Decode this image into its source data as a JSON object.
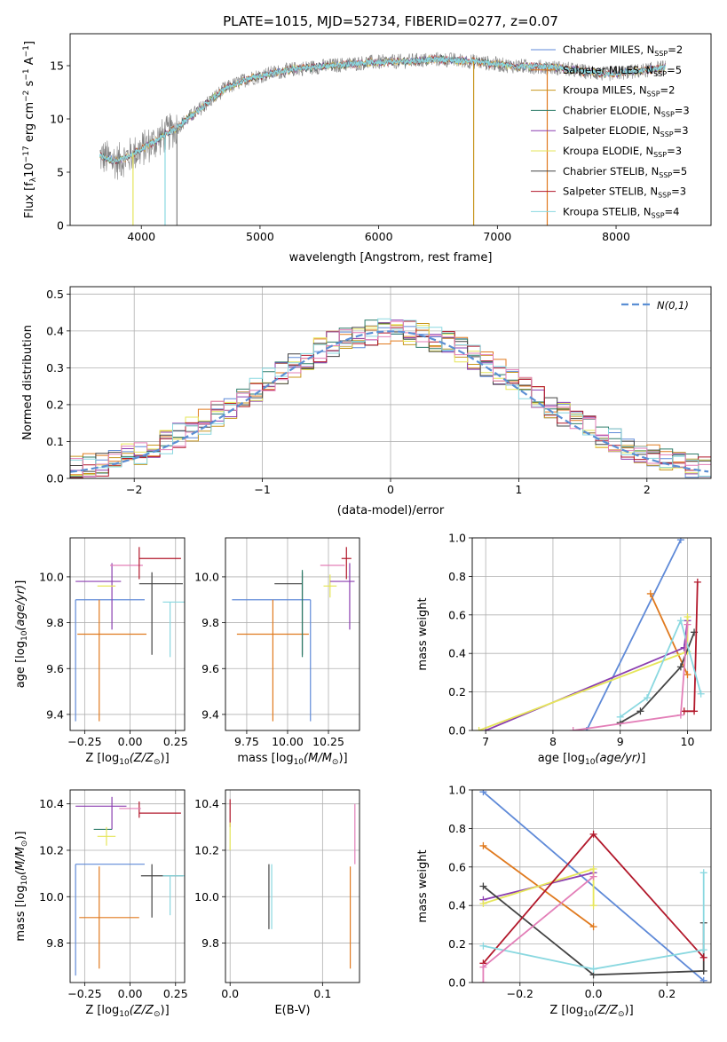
{
  "page": {
    "title": "PLATE=1015, MJD=52734, FIBERID=0277, z=0.07"
  },
  "chart_data": [
    {
      "id": "spectrum",
      "type": "line",
      "xlabel": "wavelength [Angstrom, rest frame]",
      "ylabel": "Flux [f",
      "xlim": [
        3400,
        8800
      ],
      "ylim": [
        0,
        18
      ],
      "xticks": [
        "4000",
        "5000",
        "6000",
        "7000",
        "8000"
      ],
      "yticks": [
        "0",
        "5",
        "10",
        "15"
      ],
      "legend": {
        "placement": "right",
        "entries": [
          {
            "model": "Chabrier MILES",
            "nssp": "2",
            "color": "#5f8ad8"
          },
          {
            "model": "Salpeter MILES",
            "nssp": "5",
            "color": "#e07a1f"
          },
          {
            "model": "Kroupa MILES",
            "nssp": "2",
            "color": "#c8961e"
          },
          {
            "model": "Chabrier ELODIE",
            "nssp": "3",
            "color": "#2f7d6a"
          },
          {
            "model": "Salpeter ELODIE",
            "nssp": "3",
            "color": "#8b3fb0"
          },
          {
            "model": "Kroupa ELODIE",
            "nssp": "3",
            "color": "#e6e65a"
          },
          {
            "model": "Chabrier STELIB",
            "nssp": "5",
            "color": "#444444"
          },
          {
            "model": "Salpeter STELIB",
            "nssp": "3",
            "color": "#b2182b"
          },
          {
            "model": "Kroupa STELIB",
            "nssp": "4",
            "color": "#8ad8e0"
          }
        ]
      },
      "series": {
        "observed_color": "#808080",
        "model_color": "#8ad8e0",
        "continuum": [
          [
            3650,
            6.5
          ],
          [
            3800,
            6.0
          ],
          [
            3950,
            6.8
          ],
          [
            4100,
            7.8
          ],
          [
            4300,
            9.2
          ],
          [
            4500,
            11.0
          ],
          [
            4700,
            12.8
          ],
          [
            4900,
            13.8
          ],
          [
            5100,
            14.3
          ],
          [
            5300,
            14.7
          ],
          [
            5600,
            15.0
          ],
          [
            5900,
            15.3
          ],
          [
            6200,
            15.4
          ],
          [
            6500,
            15.6
          ],
          [
            6800,
            15.4
          ],
          [
            7100,
            15.0
          ],
          [
            7500,
            14.8
          ],
          [
            7900,
            14.2
          ],
          [
            8200,
            14.5
          ],
          [
            8400,
            14.8
          ]
        ]
      }
    },
    {
      "id": "residuals",
      "type": "histogram",
      "xlabel": "(data-model)/error",
      "ylabel": "Normed distribution",
      "xlim": [
        -2.5,
        2.5
      ],
      "ylim": [
        0,
        0.52
      ],
      "xticks": [
        "−2",
        "−1",
        "0",
        "1",
        "2"
      ],
      "yticks": [
        "0.0",
        "0.1",
        "0.2",
        "0.3",
        "0.4",
        "0.5"
      ],
      "legend": {
        "placement": "top-right",
        "label": "N(0,1)"
      },
      "gaussian_color": "#5b8fd4",
      "bin_width": 0.1,
      "series_colors": [
        "#5f8ad8",
        "#e07a1f",
        "#c8961e",
        "#2f7d6a",
        "#8b3fb0",
        "#e6e65a",
        "#444444",
        "#b2182b",
        "#8ad8e0",
        "#e37fb8"
      ]
    },
    {
      "id": "age_vs_Z",
      "type": "errorbar",
      "xlabel": "Z [log",
      "ylabel": "age  [log",
      "xlim": [
        -0.33,
        0.3
      ],
      "ylim": [
        9.33,
        10.17
      ],
      "xticks": [
        "−0.25",
        "0.00",
        "0.25"
      ],
      "yticks": [
        "9.4",
        "9.6",
        "9.8",
        "10.0"
      ],
      "points": [
        {
          "x": -0.3,
          "xerr": [
            0.0,
            0.38
          ],
          "y": 9.9,
          "yerr": [
            0.53,
            0.0
          ],
          "color": "#5f8ad8"
        },
        {
          "x": -0.29,
          "xerr": [
            0.0,
            0.38
          ],
          "y": 9.75,
          "yerr": [
            0.0,
            0.0
          ],
          "color": "#e07a1f"
        },
        {
          "x": -0.17,
          "xerr": [
            0.0,
            0.0
          ],
          "y": 9.75,
          "yerr": [
            0.38,
            0.15
          ],
          "color": "#e07a1f"
        },
        {
          "x": -0.1,
          "xerr": [
            0.2,
            0.05
          ],
          "y": 9.98,
          "yerr": [
            0.21,
            0.08
          ],
          "color": "#8b3fb0"
        },
        {
          "x": -0.13,
          "xerr": [
            0.05,
            0.05
          ],
          "y": 9.96,
          "yerr": [
            0.0,
            0.0
          ],
          "color": "#e6e65a"
        },
        {
          "x": -0.06,
          "xerr": [
            0.05,
            0.13
          ],
          "y": 10.05,
          "yerr": [
            0.0,
            0.0
          ],
          "color": "#e37fb8"
        },
        {
          "x": 0.05,
          "xerr": [
            0.0,
            0.23
          ],
          "y": 10.08,
          "yerr": [
            0.09,
            0.05
          ],
          "color": "#b2182b"
        },
        {
          "x": 0.12,
          "xerr": [
            0.07,
            0.17
          ],
          "y": 9.97,
          "yerr": [
            0.31,
            0.05
          ],
          "color": "#444444"
        },
        {
          "x": 0.22,
          "xerr": [
            0.04,
            0.08
          ],
          "y": 9.89,
          "yerr": [
            0.24,
            0.0
          ],
          "color": "#8ad8e0"
        }
      ]
    },
    {
      "id": "age_vs_mass",
      "type": "errorbar",
      "xlabel": "mass [log",
      "ylabel": "",
      "xlim": [
        9.62,
        10.44
      ],
      "ylim": [
        9.33,
        10.17
      ],
      "xticks": [
        "9.75",
        "10.00",
        "10.25"
      ],
      "yticks": [
        "9.4",
        "9.6",
        "9.8",
        "10.0"
      ],
      "points": [
        {
          "x": 10.14,
          "xerr": [
            0.48,
            0.0
          ],
          "y": 9.9,
          "yerr": [
            0.53,
            0.0
          ],
          "color": "#5f8ad8"
        },
        {
          "x": 9.91,
          "xerr": [
            0.22,
            0.22
          ],
          "y": 9.75,
          "yerr": [
            0.38,
            0.15
          ],
          "color": "#e07a1f"
        },
        {
          "x": 10.09,
          "xerr": [
            0.17,
            0.0
          ],
          "y": 9.97,
          "yerr": [
            0.31,
            0.05
          ],
          "color": "#444444"
        },
        {
          "x": 10.09,
          "xerr": [
            0.0,
            0.0
          ],
          "y": 9.85,
          "yerr": [
            0.2,
            0.18
          ],
          "color": "#2f7d6a"
        },
        {
          "x": 10.26,
          "xerr": [
            0.04,
            0.04
          ],
          "y": 9.96,
          "yerr": [
            0.05,
            0.05
          ],
          "color": "#e6e65a"
        },
        {
          "x": 10.3,
          "xerr": [
            0.1,
            0.05
          ],
          "y": 10.05,
          "yerr": [
            0.0,
            0.0
          ],
          "color": "#e37fb8"
        },
        {
          "x": 10.36,
          "xerr": [
            0.03,
            0.03
          ],
          "y": 10.08,
          "yerr": [
            0.09,
            0.05
          ],
          "color": "#b2182b"
        },
        {
          "x": 10.38,
          "xerr": [
            0.12,
            0.03
          ],
          "y": 9.98,
          "yerr": [
            0.21,
            0.08
          ],
          "color": "#8b3fb0"
        }
      ]
    },
    {
      "id": "weight_vs_age",
      "type": "line",
      "xlabel": "age  [log",
      "ylabel": "mass weight",
      "xlim": [
        6.8,
        10.35
      ],
      "ylim": [
        0,
        1
      ],
      "xticks": [
        "7",
        "8",
        "9",
        "10"
      ],
      "yticks": [
        "0.0",
        "0.2",
        "0.4",
        "0.6",
        "0.8",
        "1.0"
      ],
      "series": [
        {
          "color": "#5f8ad8",
          "points": [
            [
              8.5,
              0.0
            ],
            [
              9.9,
              0.99
            ]
          ]
        },
        {
          "color": "#e07a1f",
          "points": [
            [
              9.45,
              0.71
            ],
            [
              10.0,
              0.29
            ]
          ]
        },
        {
          "color": "#8b3fb0",
          "points": [
            [
              7.0,
              0.0
            ],
            [
              9.95,
              0.43
            ],
            [
              10.0,
              0.57
            ]
          ]
        },
        {
          "color": "#e6e65a",
          "points": [
            [
              6.9,
              0.0
            ],
            [
              10.0,
              0.41
            ],
            [
              10.0,
              0.59
            ]
          ]
        },
        {
          "color": "#444444",
          "points": [
            [
              9.0,
              0.04
            ],
            [
              9.3,
              0.1
            ],
            [
              9.9,
              0.33
            ],
            [
              10.1,
              0.51
            ]
          ]
        },
        {
          "color": "#b2182b",
          "points": [
            [
              9.95,
              0.1
            ],
            [
              10.1,
              0.1
            ],
            [
              10.15,
              0.77
            ]
          ]
        },
        {
          "color": "#8ad8e0",
          "points": [
            [
              9.0,
              0.07
            ],
            [
              9.4,
              0.17
            ],
            [
              9.9,
              0.57
            ],
            [
              10.2,
              0.19
            ]
          ]
        },
        {
          "color": "#e37fb8",
          "points": [
            [
              8.3,
              0.0
            ],
            [
              9.9,
              0.08
            ],
            [
              10.0,
              0.55
            ]
          ]
        }
      ]
    },
    {
      "id": "mass_vs_Z",
      "type": "errorbar",
      "xlabel": "Z [log",
      "ylabel": "mass [log",
      "xlim": [
        -0.33,
        0.3
      ],
      "ylim": [
        9.63,
        10.46
      ],
      "xticks": [
        "−0.25",
        "0.00",
        "0.25"
      ],
      "yticks": [
        "9.8",
        "10.0",
        "10.2",
        "10.4"
      ],
      "points": [
        {
          "x": -0.3,
          "xerr": [
            0.0,
            0.38
          ],
          "y": 10.14,
          "yerr": [
            0.48,
            0.0
          ],
          "color": "#5f8ad8"
        },
        {
          "x": -0.28,
          "xerr": [
            0.0,
            0.33
          ],
          "y": 9.91,
          "yerr": [
            0.0,
            0.0
          ],
          "color": "#e07a1f"
        },
        {
          "x": -0.17,
          "xerr": [
            0.0,
            0.0
          ],
          "y": 9.91,
          "yerr": [
            0.22,
            0.22
          ],
          "color": "#e07a1f"
        },
        {
          "x": -0.1,
          "xerr": [
            0.2,
            0.08
          ],
          "y": 10.39,
          "yerr": [
            0.1,
            0.04
          ],
          "color": "#8b3fb0"
        },
        {
          "x": -0.14,
          "xerr": [
            0.06,
            0.04
          ],
          "y": 10.29,
          "yerr": [
            0.0,
            0.0
          ],
          "color": "#2f7d6a"
        },
        {
          "x": -0.13,
          "xerr": [
            0.05,
            0.05
          ],
          "y": 10.26,
          "yerr": [
            0.04,
            0.04
          ],
          "color": "#e6e65a"
        },
        {
          "x": 0.05,
          "xerr": [
            0.0,
            0.23
          ],
          "y": 10.36,
          "yerr": [
            0.02,
            0.05
          ],
          "color": "#b2182b"
        },
        {
          "x": -0.06,
          "xerr": [
            0.0,
            0.12
          ],
          "y": 10.38,
          "yerr": [
            0.0,
            0.0
          ],
          "color": "#e37fb8"
        },
        {
          "x": 0.12,
          "xerr": [
            0.06,
            0.17
          ],
          "y": 10.09,
          "yerr": [
            0.18,
            0.05
          ],
          "color": "#444444"
        },
        {
          "x": 0.22,
          "xerr": [
            0.04,
            0.08
          ],
          "y": 10.09,
          "yerr": [
            0.17,
            0.0
          ],
          "color": "#8ad8e0"
        }
      ]
    },
    {
      "id": "mass_vs_ebv",
      "type": "errorbar",
      "xlabel": "E(B-V)",
      "ylabel": "",
      "xlim": [
        -0.005,
        0.14
      ],
      "ylim": [
        9.63,
        10.46
      ],
      "xticks": [
        "0.0",
        "0.1"
      ],
      "yticks": [
        "9.8",
        "10.0",
        "10.2",
        "10.4"
      ],
      "points": [
        {
          "x": 0.0,
          "xerr": [
            0,
            0
          ],
          "y": 10.36,
          "yerr": [
            0.06,
            0.06
          ],
          "color": "#b2182b"
        },
        {
          "x": 0.0,
          "xerr": [
            0,
            0
          ],
          "y": 10.26,
          "yerr": [
            0.06,
            0.06
          ],
          "color": "#e6e65a"
        },
        {
          "x": 0.042,
          "xerr": [
            0,
            0
          ],
          "y": 10.0,
          "yerr": [
            0.14,
            0.14
          ],
          "color": "#444444"
        },
        {
          "x": 0.045,
          "xerr": [
            0,
            0
          ],
          "y": 10.0,
          "yerr": [
            0.14,
            0.14
          ],
          "color": "#8ad8e0"
        },
        {
          "x": 0.13,
          "xerr": [
            0,
            0
          ],
          "y": 9.91,
          "yerr": [
            0.22,
            0.22
          ],
          "color": "#e07a1f"
        },
        {
          "x": 0.135,
          "xerr": [
            0,
            0
          ],
          "y": 10.27,
          "yerr": [
            0.13,
            0.13
          ],
          "color": "#e37fb8"
        }
      ]
    },
    {
      "id": "weight_vs_Z",
      "type": "line",
      "xlabel": "Z [log",
      "ylabel": "mass weight",
      "xlim": [
        -0.33,
        0.32
      ],
      "ylim": [
        0,
        1
      ],
      "xticks": [
        "−0.2",
        "0.0",
        "0.2"
      ],
      "yticks": [
        "0.0",
        "0.2",
        "0.4",
        "0.6",
        "0.8",
        "1.0"
      ],
      "series": [
        {
          "color": "#5f8ad8",
          "points": [
            [
              -0.3,
              0.99
            ],
            [
              0.3,
              0.01
            ]
          ]
        },
        {
          "color": "#e07a1f",
          "points": [
            [
              -0.3,
              0.71
            ],
            [
              0.0,
              0.29
            ]
          ]
        },
        {
          "color": "#8b3fb0",
          "points": [
            [
              -0.3,
              0.43
            ],
            [
              0.0,
              0.57
            ]
          ]
        },
        {
          "color": "#e6e65a",
          "points": [
            [
              -0.3,
              0.41
            ],
            [
              0.0,
              0.59
            ],
            [
              0.0,
              0.4
            ]
          ]
        },
        {
          "color": "#444444",
          "points": [
            [
              -0.3,
              0.5
            ],
            [
              0.0,
              0.04
            ],
            [
              0.3,
              0.06
            ],
            [
              0.3,
              0.31
            ]
          ]
        },
        {
          "color": "#b2182b",
          "points": [
            [
              -0.3,
              0.1
            ],
            [
              0.0,
              0.77
            ],
            [
              0.3,
              0.13
            ]
          ]
        },
        {
          "color": "#8ad8e0",
          "points": [
            [
              -0.3,
              0.19
            ],
            [
              0.0,
              0.07
            ],
            [
              0.3,
              0.17
            ],
            [
              0.3,
              0.57
            ]
          ]
        },
        {
          "color": "#e37fb8",
          "points": [
            [
              -0.3,
              0.0
            ],
            [
              -0.3,
              0.08
            ],
            [
              0.0,
              0.55
            ]
          ]
        }
      ]
    }
  ]
}
